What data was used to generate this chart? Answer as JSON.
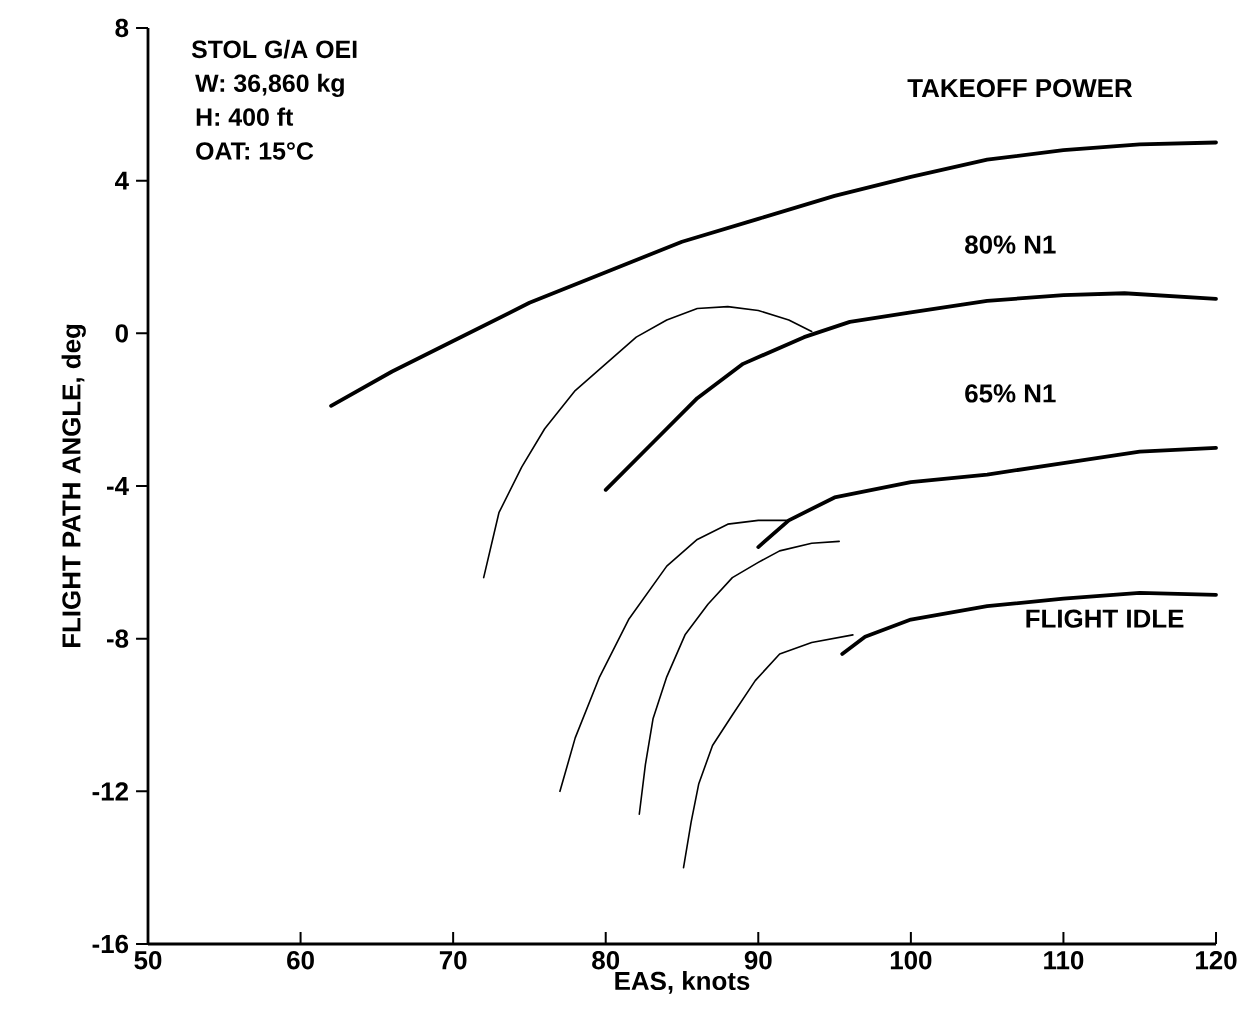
{
  "chart_data": {
    "type": "line",
    "title": "STOL G/A OEI",
    "xlabel": "EAS, knots",
    "ylabel": "FLIGHT PATH ANGLE, deg",
    "annotations": [
      "W:  36,860 kg",
      "H:  400 ft",
      "OAT:  15°C"
    ],
    "xlim": [
      50,
      120
    ],
    "xticks": [
      50,
      60,
      70,
      80,
      90,
      100,
      110,
      120
    ],
    "ylim": [
      -16,
      8
    ],
    "yticks": [
      -16,
      -12,
      -8,
      -4,
      0,
      4,
      8
    ],
    "grid": false,
    "legend": false,
    "series": [
      {
        "name": "TAKEOFF POWER",
        "color": "#000000",
        "x": [
          62,
          66,
          70,
          75,
          80,
          85,
          90,
          95,
          100,
          105,
          110,
          115,
          120
        ],
        "values": [
          -1.9,
          -1.0,
          -0.2,
          0.8,
          1.6,
          2.4,
          3.0,
          3.6,
          4.1,
          4.55,
          4.8,
          4.95,
          5.0
        ]
      },
      {
        "name": "80% N1",
        "color": "#000000",
        "x": [
          80,
          83,
          86,
          89,
          93,
          96,
          100,
          105,
          110,
          114,
          120
        ],
        "values": [
          -4.1,
          -2.9,
          -1.7,
          -0.8,
          -0.1,
          0.3,
          0.55,
          0.85,
          1.0,
          1.05,
          0.9
        ]
      },
      {
        "name": "65% N1",
        "color": "#000000",
        "x": [
          90,
          92,
          95,
          100,
          105,
          110,
          115,
          120
        ],
        "values": [
          -5.6,
          -4.9,
          -4.3,
          -3.9,
          -3.7,
          -3.4,
          -3.1,
          -3.0
        ]
      },
      {
        "name": "FLIGHT IDLE",
        "color": "#000000",
        "x": [
          95.5,
          97,
          100,
          105,
          110,
          115,
          120
        ],
        "values": [
          -8.4,
          -7.95,
          -7.5,
          -7.15,
          -6.95,
          -6.8,
          -6.85
        ]
      },
      {
        "color": "#000000",
        "x": [
          72,
          73,
          74.5,
          76,
          78,
          80,
          82,
          84,
          86,
          88,
          90,
          92,
          93.5
        ],
        "values": [
          -6.4,
          -4.7,
          -3.5,
          -2.5,
          -1.5,
          -0.8,
          -0.1,
          0.35,
          0.65,
          0.7,
          0.6,
          0.35,
          0.05
        ]
      },
      {
        "color": "#000000",
        "x": [
          77,
          78,
          79.6,
          81.5,
          84,
          86,
          88,
          90,
          92
        ],
        "values": [
          -12.0,
          -10.6,
          -9.0,
          -7.5,
          -6.1,
          -5.4,
          -5.0,
          -4.9,
          -4.9
        ]
      },
      {
        "color": "#000000",
        "x": [
          82.2,
          82.6,
          83.1,
          84,
          85.2,
          86.7,
          88.3,
          90,
          91.4,
          93.5,
          95.3
        ],
        "values": [
          -12.6,
          -11.3,
          -10.1,
          -9.0,
          -7.9,
          -7.1,
          -6.4,
          -6.0,
          -5.7,
          -5.5,
          -5.45
        ]
      },
      {
        "color": "#000000",
        "x": [
          85.1,
          85.6,
          86.1,
          87,
          88.3,
          89.8,
          91.4,
          93.5,
          96.2
        ],
        "values": [
          -14.0,
          -12.8,
          -11.8,
          -10.8,
          -10.0,
          -9.1,
          -8.4,
          -8.1,
          -7.9
        ]
      }
    ]
  }
}
